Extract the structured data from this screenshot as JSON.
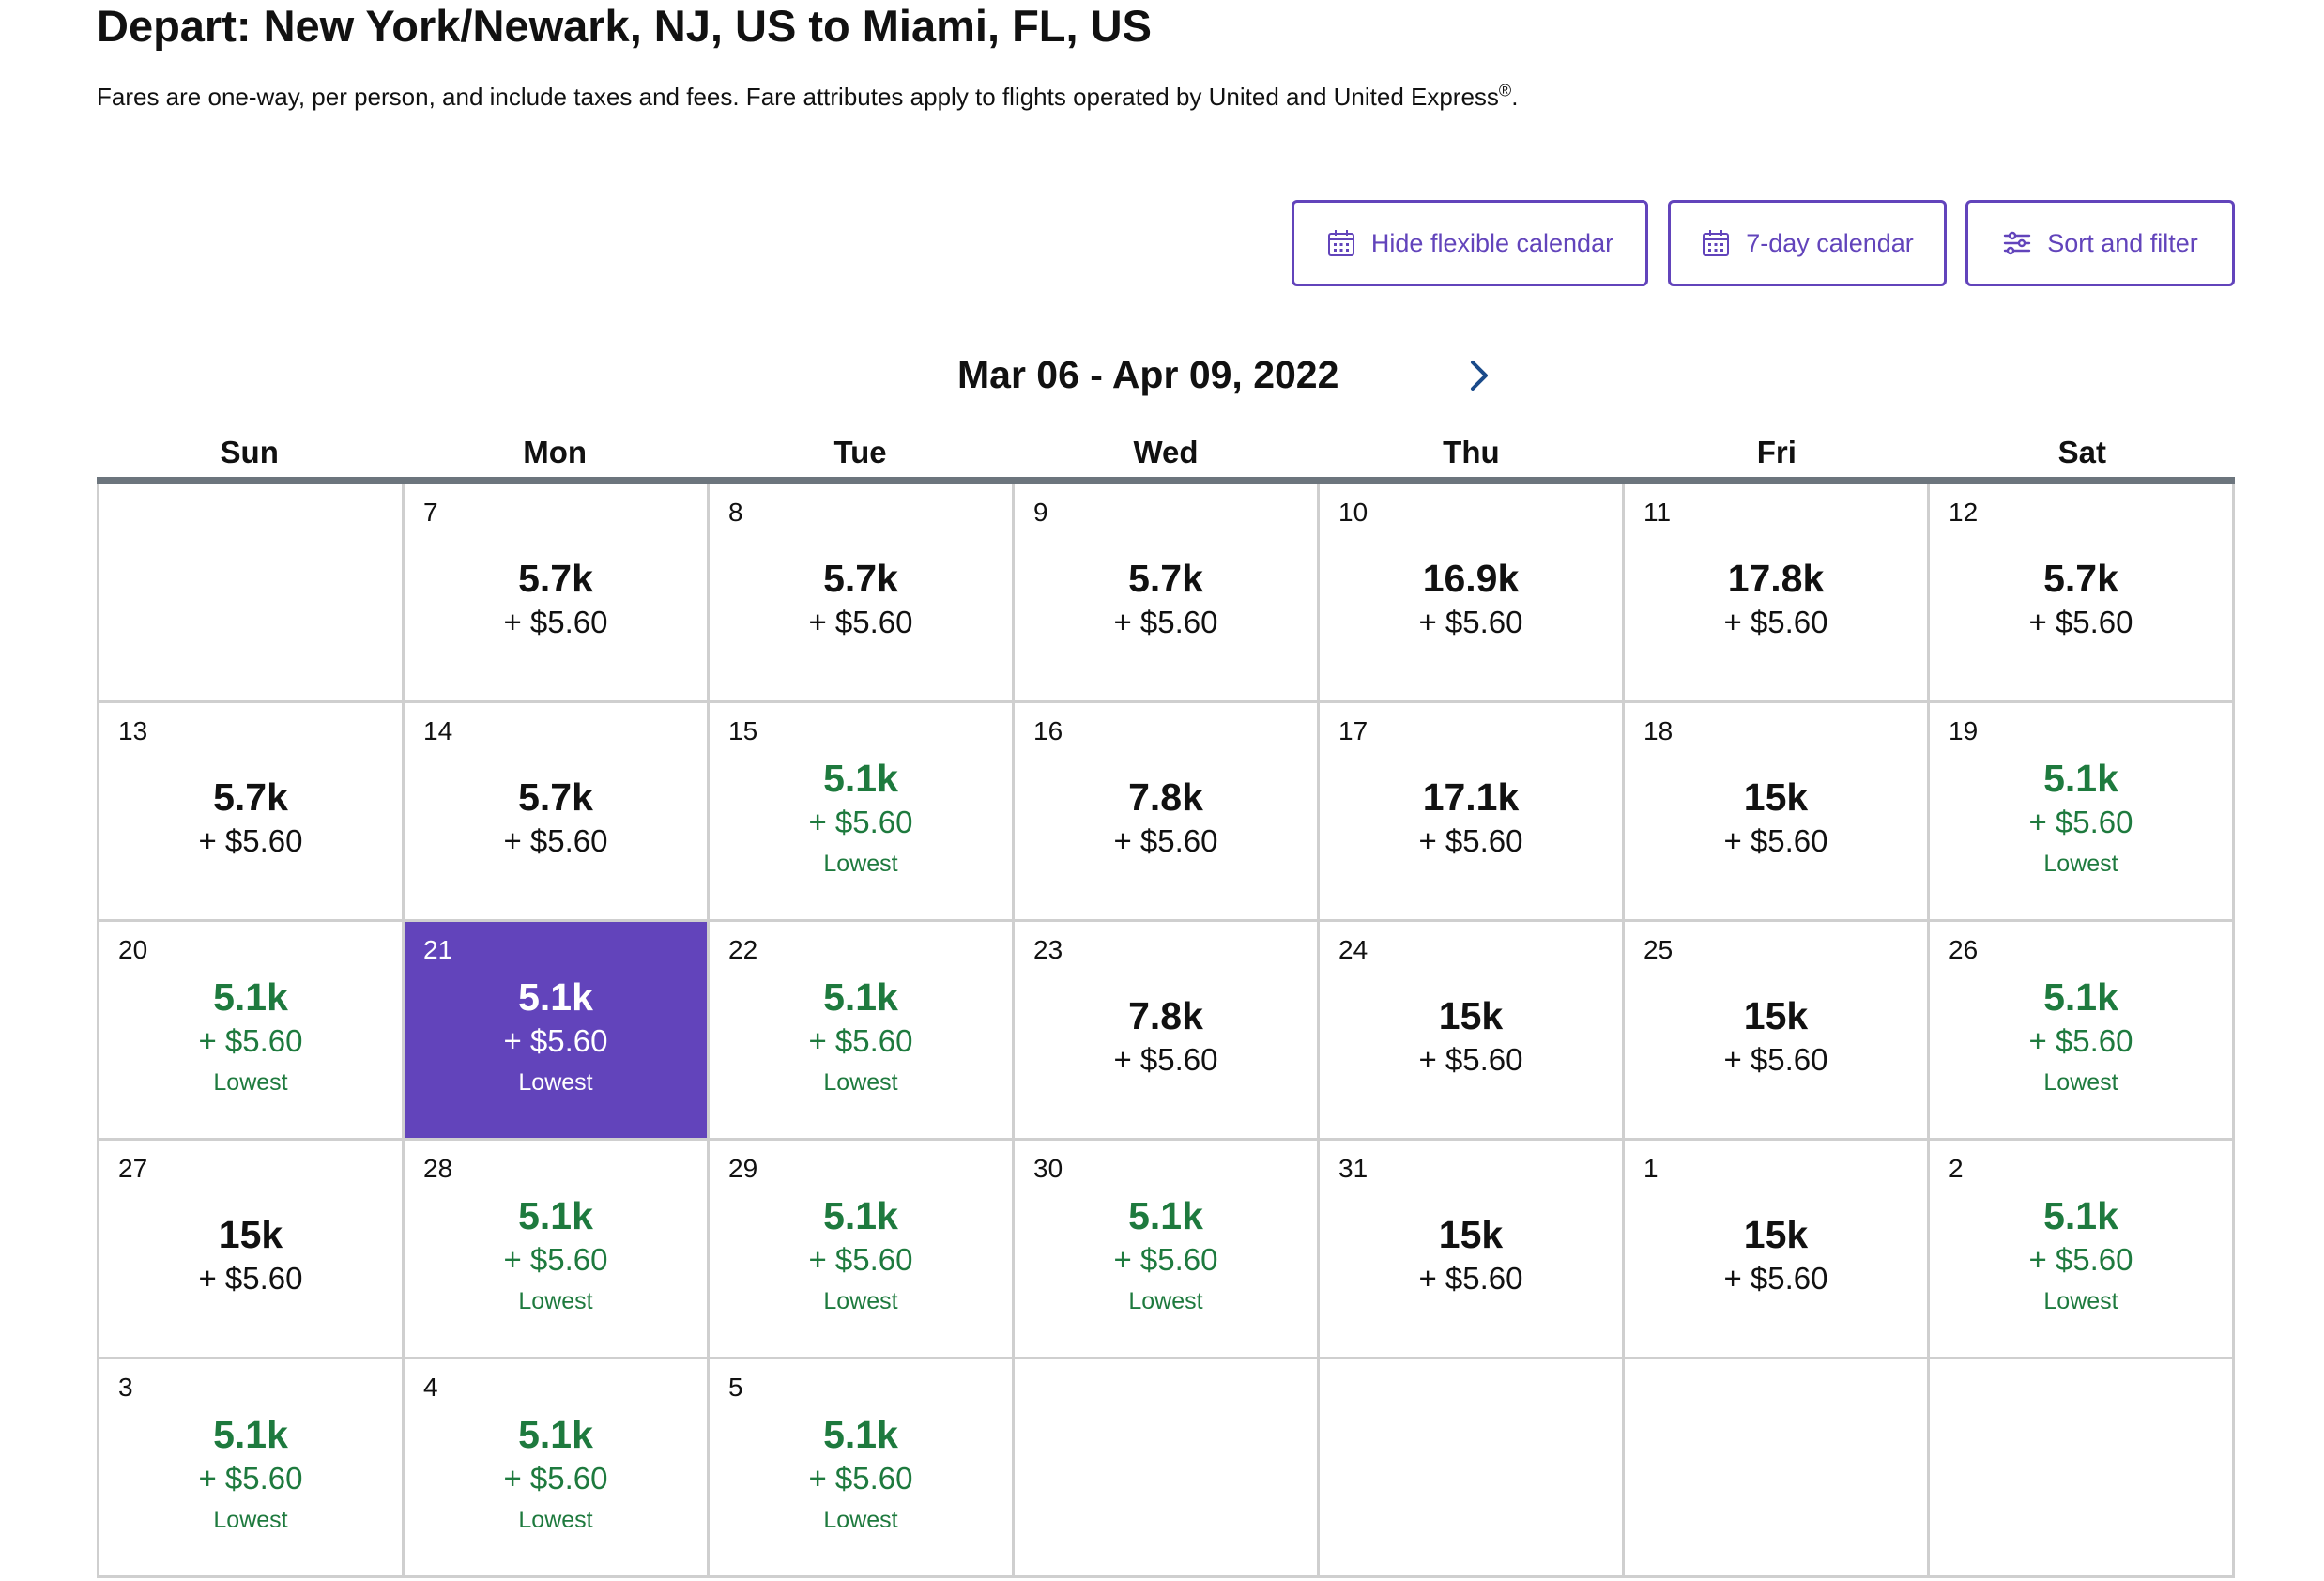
{
  "header": {
    "title": "Depart: New York/Newark, NJ, US to Miami, FL, US",
    "note": "Fares are one-way, per person, and include taxes and fees. Fare attributes apply to flights operated by United and United Express",
    "note_mark": "®",
    "note_end": "."
  },
  "toolbar": {
    "hide_flexible_label": "Hide flexible calendar",
    "seven_day_label": "7-day calendar",
    "sort_filter_label": "Sort and filter"
  },
  "calendar": {
    "range_label": "Mar 06 - Apr 09, 2022",
    "lowest_label": "Lowest",
    "weekdays": [
      "Sun",
      "Mon",
      "Tue",
      "Wed",
      "Thu",
      "Fri",
      "Sat"
    ],
    "weeks": [
      [
        {
          "day": "",
          "miles": "",
          "tax": "",
          "lowest": false
        },
        {
          "day": "7",
          "miles": "5.7k",
          "tax": "+ $5.60",
          "lowest": false
        },
        {
          "day": "8",
          "miles": "5.7k",
          "tax": "+ $5.60",
          "lowest": false
        },
        {
          "day": "9",
          "miles": "5.7k",
          "tax": "+ $5.60",
          "lowest": false
        },
        {
          "day": "10",
          "miles": "16.9k",
          "tax": "+ $5.60",
          "lowest": false
        },
        {
          "day": "11",
          "miles": "17.8k",
          "tax": "+ $5.60",
          "lowest": false
        },
        {
          "day": "12",
          "miles": "5.7k",
          "tax": "+ $5.60",
          "lowest": false
        }
      ],
      [
        {
          "day": "13",
          "miles": "5.7k",
          "tax": "+ $5.60",
          "lowest": false
        },
        {
          "day": "14",
          "miles": "5.7k",
          "tax": "+ $5.60",
          "lowest": false
        },
        {
          "day": "15",
          "miles": "5.1k",
          "tax": "+ $5.60",
          "lowest": true
        },
        {
          "day": "16",
          "miles": "7.8k",
          "tax": "+ $5.60",
          "lowest": false
        },
        {
          "day": "17",
          "miles": "17.1k",
          "tax": "+ $5.60",
          "lowest": false
        },
        {
          "day": "18",
          "miles": "15k",
          "tax": "+ $5.60",
          "lowest": false
        },
        {
          "day": "19",
          "miles": "5.1k",
          "tax": "+ $5.60",
          "lowest": true
        }
      ],
      [
        {
          "day": "20",
          "miles": "5.1k",
          "tax": "+ $5.60",
          "lowest": true
        },
        {
          "day": "21",
          "miles": "5.1k",
          "tax": "+ $5.60",
          "lowest": true,
          "selected": true
        },
        {
          "day": "22",
          "miles": "5.1k",
          "tax": "+ $5.60",
          "lowest": true
        },
        {
          "day": "23",
          "miles": "7.8k",
          "tax": "+ $5.60",
          "lowest": false
        },
        {
          "day": "24",
          "miles": "15k",
          "tax": "+ $5.60",
          "lowest": false
        },
        {
          "day": "25",
          "miles": "15k",
          "tax": "+ $5.60",
          "lowest": false
        },
        {
          "day": "26",
          "miles": "5.1k",
          "tax": "+ $5.60",
          "lowest": true
        }
      ],
      [
        {
          "day": "27",
          "miles": "15k",
          "tax": "+ $5.60",
          "lowest": false
        },
        {
          "day": "28",
          "miles": "5.1k",
          "tax": "+ $5.60",
          "lowest": true
        },
        {
          "day": "29",
          "miles": "5.1k",
          "tax": "+ $5.60",
          "lowest": true
        },
        {
          "day": "30",
          "miles": "5.1k",
          "tax": "+ $5.60",
          "lowest": true
        },
        {
          "day": "31",
          "miles": "15k",
          "tax": "+ $5.60",
          "lowest": false
        },
        {
          "day": "1",
          "miles": "15k",
          "tax": "+ $5.60",
          "lowest": false
        },
        {
          "day": "2",
          "miles": "5.1k",
          "tax": "+ $5.60",
          "lowest": true
        }
      ],
      [
        {
          "day": "3",
          "miles": "5.1k",
          "tax": "+ $5.60",
          "lowest": true
        },
        {
          "day": "4",
          "miles": "5.1k",
          "tax": "+ $5.60",
          "lowest": true
        },
        {
          "day": "5",
          "miles": "5.1k",
          "tax": "+ $5.60",
          "lowest": true
        },
        {
          "day": "",
          "miles": "",
          "tax": "",
          "lowest": false
        },
        {
          "day": "",
          "miles": "",
          "tax": "",
          "lowest": false
        },
        {
          "day": "",
          "miles": "",
          "tax": "",
          "lowest": false
        },
        {
          "day": "",
          "miles": "",
          "tax": "",
          "lowest": false
        }
      ]
    ]
  },
  "colors": {
    "accent": "#6244bb",
    "lowest": "#1e7a3e",
    "grid_line": "#cfcfcf",
    "header_rule": "#6c757d"
  },
  "icons": {
    "hide_flexible": "calendar-icon",
    "seven_day": "calendar-icon",
    "sort_filter": "sliders-icon",
    "next": "chevron-right-icon"
  }
}
